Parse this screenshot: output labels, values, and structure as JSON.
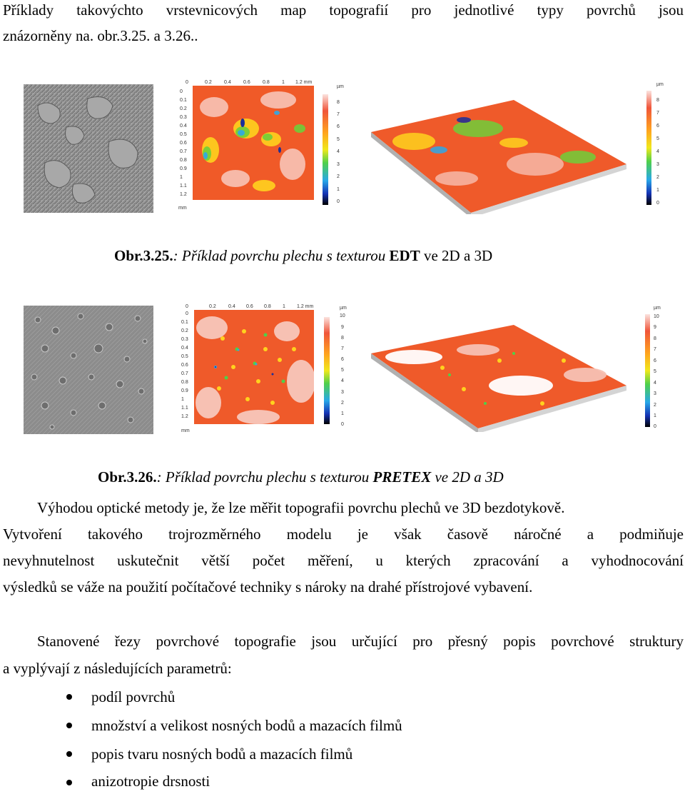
{
  "intro": {
    "line1": "Příklady takovýchto vrstevnicových map topografií pro jednotlivé typy povrchů jsou",
    "line2": "znázorněny na. obr.3.25. a 3.26.."
  },
  "figure1": {
    "caption_ref": "Obr.3.25.",
    "caption_text": ": Příklad povrchu plechu s texturou ",
    "caption_bold": "EDT",
    "caption_tail": " ve 2D a 3D",
    "x_ticks": [
      "0",
      "0.2",
      "0.4",
      "0.6",
      "0.8",
      "1",
      "1.2 mm"
    ],
    "y_ticks": [
      "0",
      "0.1",
      "0.2",
      "0.3",
      "0.4",
      "0.5",
      "0.6",
      "0.7",
      "0.8",
      "0.9",
      "1",
      "1.1",
      "1.2"
    ],
    "y_unit": "mm",
    "scale_unit": "µm",
    "scale_ticks": [
      "8",
      "7",
      "6",
      "5",
      "4",
      "3",
      "2",
      "1",
      "0"
    ],
    "scale3d_unit": "µm",
    "scale3d_ticks": [
      "8",
      "7",
      "6",
      "5",
      "4",
      "3",
      "2",
      "1",
      "0"
    ]
  },
  "figure2": {
    "caption_ref": "Obr.3.26.",
    "caption_text": ": Příklad povrchu plechu s texturou ",
    "caption_bold": "PRETEX",
    "caption_tail": " ve 2D a 3D",
    "x_ticks": [
      "0",
      "0.2",
      "0.4",
      "0.6",
      "0.8",
      "1",
      "1.2 mm"
    ],
    "y_ticks": [
      "0",
      "0.1",
      "0.2",
      "0.3",
      "0.4",
      "0.5",
      "0.6",
      "0.7",
      "0.8",
      "0.9",
      "1",
      "1.1",
      "1.2"
    ],
    "y_unit": "mm",
    "scale_unit": "µm",
    "scale_ticks": [
      "10",
      "9",
      "8",
      "7",
      "6",
      "5",
      "4",
      "3",
      "2",
      "1",
      "0"
    ],
    "scale3d_unit": "µm",
    "scale3d_ticks": [
      "10",
      "9",
      "8",
      "7",
      "6",
      "5",
      "4",
      "3",
      "2",
      "1",
      "0"
    ]
  },
  "body": {
    "p1_line1": "Výhodou optické metody je, že lze měřit topografii povrchu plechů ve 3D bezdotykově.",
    "p1_line2": "Vytvoření takového trojrozměrného modelu je však časově náročné a podmiňuje",
    "p1_line3": "nevyhnutelnost uskutečnit větší počet měření, u kterých zpracování a vyhodnocování",
    "p1_line4": "výsledků se váže na použití počítačové techniky s nároky na drahé přístrojové vybavení.",
    "p2_line1": "Stanovené řezy povrchové topografie jsou určující pro přesný popis povrchové struktury",
    "p2_line2": "a vyplývají z následujících parametrů:"
  },
  "list": [
    "podíl povrchů",
    "množství a velikost nosných bodů a mazacích filmů",
    "popis tvaru nosných bodů a mazacích filmů",
    "anizotropie drsnosti"
  ]
}
